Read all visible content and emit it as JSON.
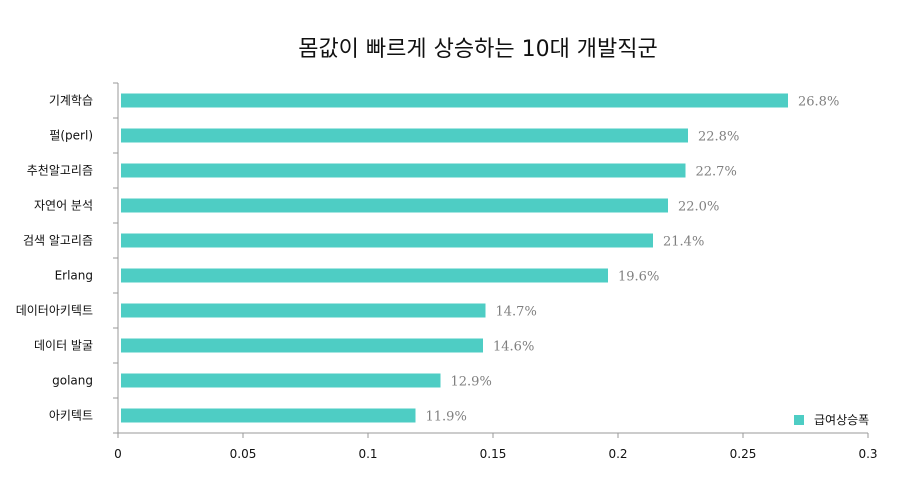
{
  "chart_data": {
    "type": "bar",
    "orientation": "horizontal",
    "title": "몸값이 빠르게 상승하는 10대 개발직군",
    "categories": [
      "기계학습",
      "펄(perl)",
      "추천알고리즘",
      "자연어 분석",
      "검색 알고리즘",
      "Erlang",
      "데이터아키텍트",
      "데이터 발굴",
      "golang",
      "아키텍트"
    ],
    "series": [
      {
        "name": "급여상승폭",
        "values": [
          0.268,
          0.228,
          0.227,
          0.22,
          0.214,
          0.196,
          0.147,
          0.146,
          0.129,
          0.119
        ],
        "labels": [
          "26.8%",
          "22.8%",
          "22.7%",
          "22.0%",
          "21.4%",
          "19.6%",
          "14.7%",
          "14.6%",
          "12.9%",
          "11.9%"
        ]
      }
    ],
    "xlim": [
      0,
      0.3
    ],
    "xticks": [
      "0",
      "0.05",
      "0.1",
      "0.15",
      "0.2",
      "0.25",
      "0.3"
    ],
    "xlabel": "",
    "ylabel": "",
    "legend_position": "bottom-right",
    "grid": false,
    "bar_color": "#4ecdc4",
    "label_color": "#7f7f7f",
    "axis_color": "#999999"
  }
}
